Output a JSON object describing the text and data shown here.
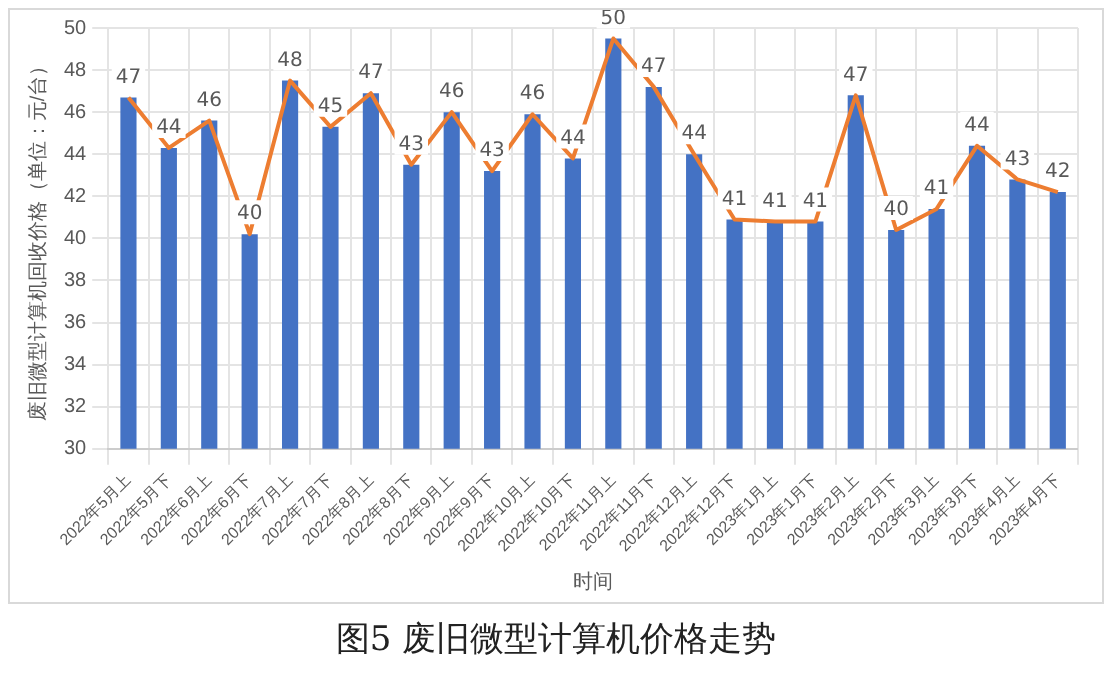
{
  "chart_data": {
    "type": "bar",
    "title": "图5  废旧微型计算机价格走势",
    "xlabel": "时间",
    "ylabel": "废旧微型计算机回收价格（单位：元/台）",
    "categories": [
      "2022年5月上",
      "2022年5月下",
      "2022年6月上",
      "2022年6月下",
      "2022年7月上",
      "2022年7月下",
      "2022年8月上",
      "2022年8月下",
      "2022年9月上",
      "2022年9月下",
      "2022年10月上",
      "2022年10月下",
      "2022年11月上",
      "2022年11月下",
      "2022年12月上",
      "2022年12月下",
      "2023年1月上",
      "2023年1月下",
      "2023年2月上",
      "2023年2月下",
      "2023年3月上",
      "2023年3月下",
      "2023年4月上",
      "2023年4月下"
    ],
    "series": [
      {
        "color": "#4472c4",
        "values": [
          46.7,
          44.3,
          45.6,
          40.2,
          47.5,
          45.3,
          46.9,
          43.5,
          46.0,
          43.2,
          45.9,
          43.8,
          49.5,
          47.2,
          44.0,
          40.9,
          40.8,
          40.8,
          46.8,
          40.4,
          41.4,
          44.4,
          42.8,
          42.2
        ]
      },
      {
        "type": "line",
        "color": "#ed7d31",
        "values": [
          46.7,
          44.3,
          45.6,
          40.2,
          47.5,
          45.3,
          46.9,
          43.5,
          46.0,
          43.2,
          45.9,
          43.8,
          49.5,
          47.2,
          44.0,
          40.9,
          40.8,
          40.8,
          46.8,
          40.4,
          41.4,
          44.4,
          42.8,
          42.2
        ],
        "value_labels": [
          "47",
          "44",
          "46",
          "40",
          "48",
          "45",
          "47",
          "43",
          "46",
          "43",
          "46",
          "44",
          "50",
          "47",
          "44",
          "41",
          "41",
          "41",
          "47",
          "40",
          "41",
          "44",
          "43",
          "42"
        ]
      }
    ],
    "ylim": [
      30,
      50
    ],
    "yticks": [
      30,
      32,
      34,
      36,
      38,
      40,
      42,
      44,
      46,
      48,
      50
    ],
    "grid": true,
    "legend": false,
    "marker": "none"
  }
}
